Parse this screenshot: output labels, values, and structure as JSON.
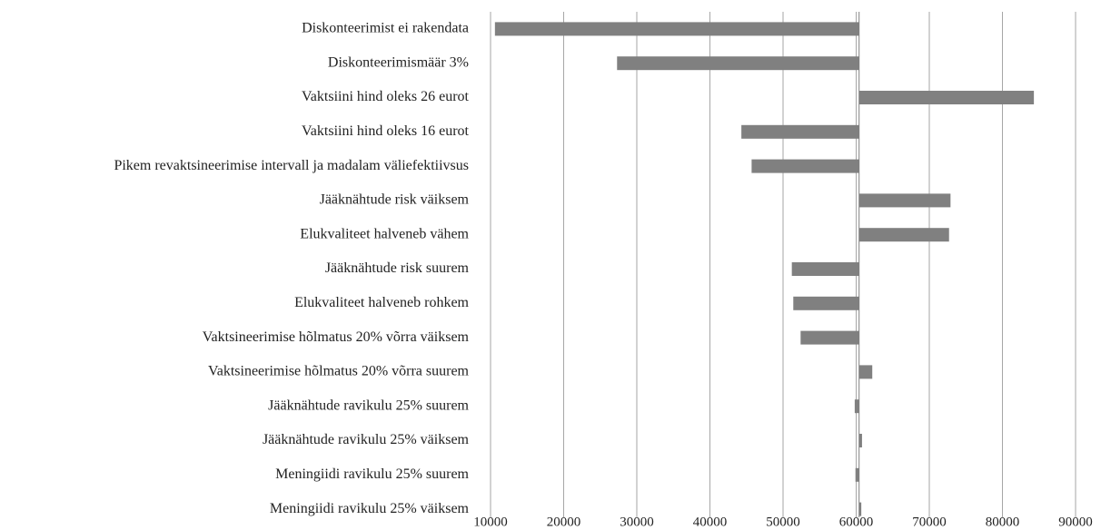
{
  "chart_data": {
    "type": "tornado",
    "categories": [
      "Diskonteerimist ei rakendata",
      "Diskonteerimismäär 3%",
      "Vaktsiini hind oleks 26 eurot",
      "Vaktsiini hind oleks 16 eurot",
      "Pikem revaktsineerimise intervall ja madalam väliefektiivsus",
      "Jääknähtude risk väiksem",
      "Elukvaliteet halveneb vähem",
      "Jääknähtude risk suurem",
      "Elukvaliteet halveneb rohkem",
      "Vaktsineerimise hõlmatus 20% võrra väiksem",
      "Vaktsineerimise hõlmatus 20% võrra suurem",
      "Jääknähtude ravikulu 25% suurem",
      "Jääknähtude ravikulu 25% väiksem",
      "Meningiidi ravikulu 25% suurem",
      "Meningiidi ravikulu 25% väiksem"
    ],
    "values": [
      10600,
      27300,
      84300,
      44300,
      45700,
      72900,
      72700,
      51200,
      51400,
      52400,
      62200,
      59800,
      60800,
      59900,
      60700
    ],
    "base": 60400,
    "color": "#808080",
    "xlim": [
      10000,
      90000
    ],
    "xticks": [
      10000,
      20000,
      30000,
      40000,
      50000,
      60000,
      70000,
      80000,
      90000
    ],
    "grid": true
  }
}
